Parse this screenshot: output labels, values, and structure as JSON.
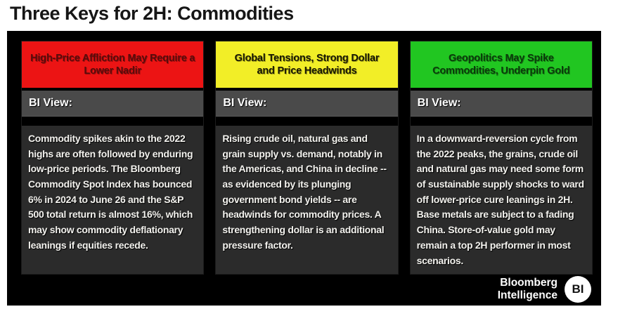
{
  "page": {
    "title": "Three Keys for 2H: Commodities"
  },
  "panel": {
    "background": "#000000",
    "bi_bar_color": "#4a4a4a",
    "body_background": "#2b2b2b",
    "body_text_color": "#f3f2ee"
  },
  "cards": [
    {
      "header": "High-Price Affliction May Require a Lower Nadir",
      "header_bg": "#ec1414",
      "header_text_color": "#5a0b0b",
      "bi_view_label": "BI View:",
      "body": "Commodity spikes akin to the 2022 highs are often followed by enduring low-price periods. The Bloomberg Commodity Spot Index has bounced 6% in 2024 to June 26 and the S&P 500 total return is almost 16%, which may show commodity deflationary leanings if equities recede."
    },
    {
      "header": "Global Tensions, Strong Dollar and Price Headwinds",
      "header_bg": "#f2ee27",
      "header_text_color": "#171602",
      "bi_view_label": "BI View:",
      "body": "Rising crude oil, natural gas and grain supply vs. demand, notably in the Americas, and China in decline -- as evidenced by its plunging government bond yields -- are headwinds for commodity prices. A strengthening dollar is an additional pressure factor."
    },
    {
      "header": "Geopolitics May Spike Commodities, Underpin Gold",
      "header_bg": "#21c621",
      "header_text_color": "#0a3c0a",
      "bi_view_label": "BI View:",
      "body": "In a downward-reversion cycle from the 2022 peaks, the grains, crude oil and natural gas may need some form of sustainable supply shocks to ward off lower-price cure leanings in 2H. Base metals are subject to a fading China. Store-of-value gold may remain a top 2H performer in most scenarios."
    }
  ],
  "footer": {
    "brand_line1": "Bloomberg",
    "brand_line2": "Intelligence",
    "badge": "BI"
  }
}
